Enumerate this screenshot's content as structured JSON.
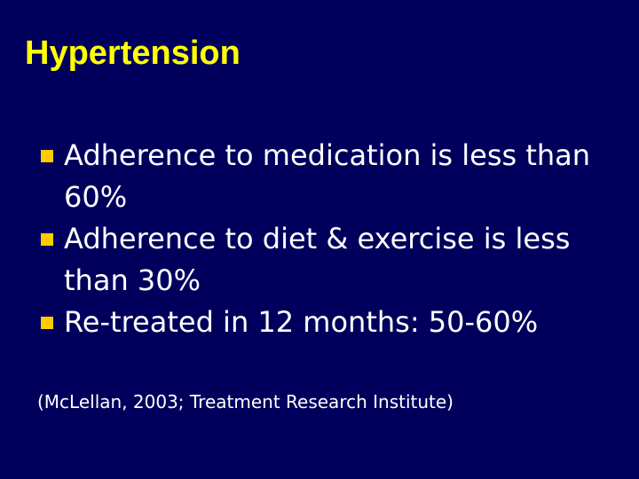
{
  "title": "Hypertension",
  "bullets": [
    "Adherence to medication is less than 60%",
    "Adherence to diet & exercise is less than 30%",
    "Re-treated in 12 months: 50-60%"
  ],
  "citation": "(McLellan, 2003; Treatment Research Institute)"
}
